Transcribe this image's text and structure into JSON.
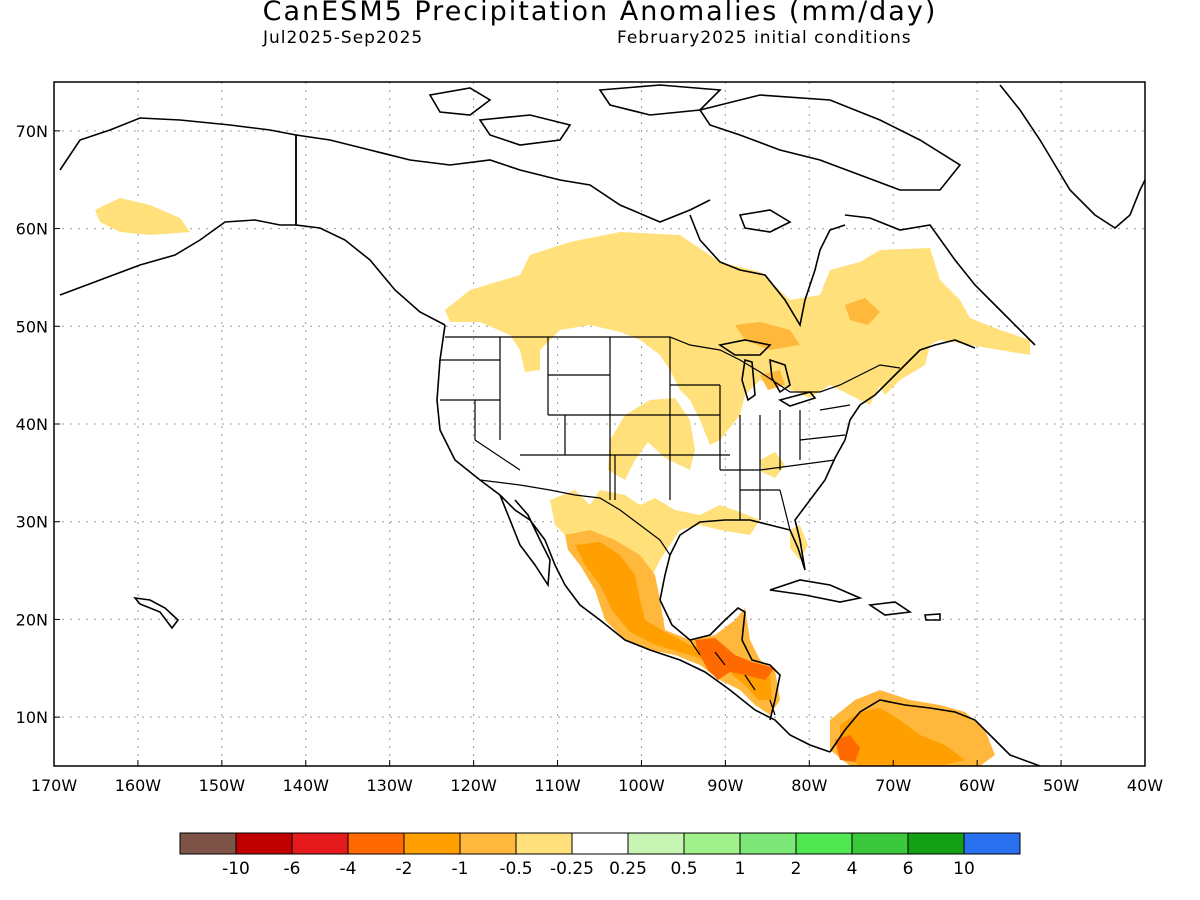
{
  "title": "CanESM5 Precipitation Anomalies (mm/day)",
  "subtitle_left": "Jul2025-Sep2025",
  "subtitle_right": "February2025 initial conditions",
  "lat_labels": [
    "70N",
    "60N",
    "50N",
    "40N",
    "30N",
    "20N",
    "10N"
  ],
  "lon_labels": [
    "170W",
    "160W",
    "150W",
    "140W",
    "130W",
    "120W",
    "110W",
    "100W",
    "90W",
    "80W",
    "70W",
    "60W",
    "50W",
    "40W"
  ],
  "legend": {
    "colors": [
      "#7d5447",
      "#c00000",
      "#e41a1c",
      "#ff6a00",
      "#ff9f00",
      "#ffb83c",
      "#ffe07a",
      "#ffffff",
      "#c8f5b4",
      "#a0f08c",
      "#7de878",
      "#50e850",
      "#3cc83c",
      "#14a014",
      "#2870f0"
    ],
    "labels": [
      "-10",
      "-6",
      "-4",
      "-2",
      "-1",
      "-0.5",
      "-0.25",
      "0.25",
      "0.5",
      "1",
      "2",
      "4",
      "6",
      "10"
    ]
  },
  "map_colors": {
    "light": "#ffe07a",
    "medium": "#ffb83c",
    "orange": "#ff9f00",
    "dark_orange": "#ff6a00"
  }
}
